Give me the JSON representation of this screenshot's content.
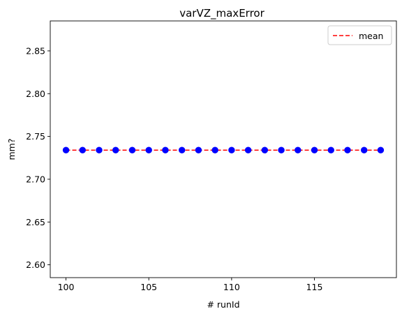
{
  "chart_data": {
    "type": "scatter",
    "title": "varVZ_maxError",
    "xlabel": "# runId",
    "ylabel": "mm?",
    "xlim": [
      99.05,
      119.95
    ],
    "ylim": [
      2.585,
      2.885
    ],
    "xticks": [
      100,
      105,
      110,
      115
    ],
    "yticks": [
      2.6,
      2.65,
      2.7,
      2.75,
      2.8,
      2.85
    ],
    "x": [
      100,
      101,
      102,
      103,
      104,
      105,
      106,
      107,
      108,
      109,
      110,
      111,
      112,
      113,
      114,
      115,
      116,
      117,
      118,
      119
    ],
    "y": [
      2.734,
      2.734,
      2.734,
      2.734,
      2.734,
      2.734,
      2.734,
      2.734,
      2.734,
      2.734,
      2.734,
      2.734,
      2.734,
      2.734,
      2.734,
      2.734,
      2.734,
      2.734,
      2.734,
      2.734
    ],
    "mean": 2.734,
    "legend": {
      "position": "top-right",
      "entries": [
        "mean"
      ]
    },
    "grid": false,
    "colors": {
      "points": "#0000ff",
      "mean_line": "#ff0000"
    }
  }
}
